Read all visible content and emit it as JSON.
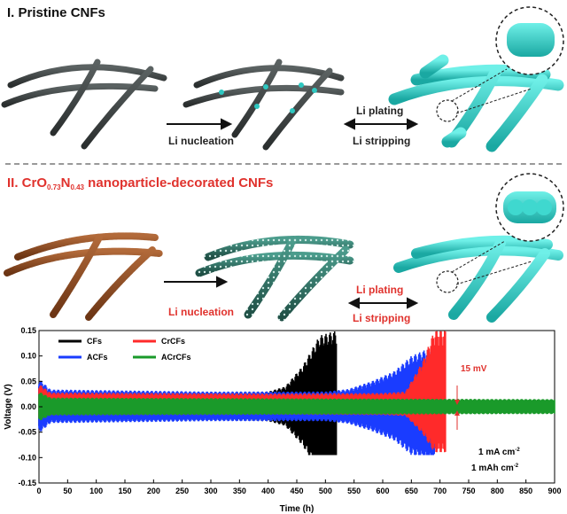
{
  "panel1": {
    "title": "I. Pristine CNFs",
    "nucleation": "Li nucleation",
    "plating": "Li plating",
    "stripping": "Li stripping"
  },
  "panel2": {
    "title_prefix": "II. CrO",
    "sub1": "0.73",
    "mid": "N",
    "sub2": "0.43",
    "title_suffix": " nanoparticle-decorated CNFs",
    "nucleation": "Li nucleation",
    "plating": "Li plating",
    "stripping": "Li stripping"
  },
  "colors": {
    "fiber_pristine": "#3a3f3f",
    "fiber_decorated": "#8a4a22",
    "nucleated": "#2e6d60",
    "lithium": "#2ec7c0",
    "red_accent": "#e0322d"
  },
  "chart_data": {
    "type": "line",
    "xlabel": "Time (h)",
    "ylabel": "Voltage (V)",
    "xlim": [
      0,
      900
    ],
    "ylim": [
      -0.15,
      0.15
    ],
    "x_ticks": [
      0,
      50,
      100,
      150,
      200,
      250,
      300,
      350,
      400,
      450,
      500,
      550,
      600,
      650,
      700,
      750,
      800,
      850,
      900
    ],
    "y_ticks": [
      -0.15,
      -0.1,
      -0.05,
      0.0,
      0.05,
      0.1,
      0.15
    ],
    "y_tick_labels": [
      "-0.15",
      "-0.10",
      "-0.05",
      "0.00",
      "0.05",
      "0.10",
      "0.15"
    ],
    "series": [
      {
        "name": "CFs",
        "color": "#000000",
        "end_x": 520,
        "envelope": [
          [
            0,
            0.05
          ],
          [
            20,
            0.03
          ],
          [
            300,
            0.028
          ],
          [
            400,
            0.03
          ],
          [
            430,
            0.04
          ],
          [
            460,
            0.08
          ],
          [
            490,
            0.14
          ],
          [
            520,
            0.15
          ]
        ]
      },
      {
        "name": "CrCFs",
        "color": "#ff2a2a",
        "end_x": 710,
        "envelope": [
          [
            0,
            0.045
          ],
          [
            20,
            0.028
          ],
          [
            400,
            0.026
          ],
          [
            600,
            0.027
          ],
          [
            640,
            0.03
          ],
          [
            670,
            0.09
          ],
          [
            690,
            0.15
          ],
          [
            710,
            0.15
          ]
        ]
      },
      {
        "name": "ACFs",
        "color": "#1a3cff",
        "end_x": 690,
        "envelope": [
          [
            0,
            0.055
          ],
          [
            20,
            0.034
          ],
          [
            300,
            0.03
          ],
          [
            500,
            0.03
          ],
          [
            540,
            0.035
          ],
          [
            580,
            0.05
          ],
          [
            620,
            0.07
          ],
          [
            650,
            0.1
          ],
          [
            690,
            0.12
          ]
        ]
      },
      {
        "name": "ACrCFs",
        "color": "#1a9a2a",
        "end_x": 900,
        "envelope": [
          [
            0,
            0.03
          ],
          [
            20,
            0.018
          ],
          [
            900,
            0.015
          ]
        ]
      }
    ],
    "annotations": {
      "mv": "15 mV",
      "current": "1 mA cm",
      "current_sup": "-2",
      "capacity": "1 mAh cm",
      "capacity_sup": "-2"
    }
  }
}
